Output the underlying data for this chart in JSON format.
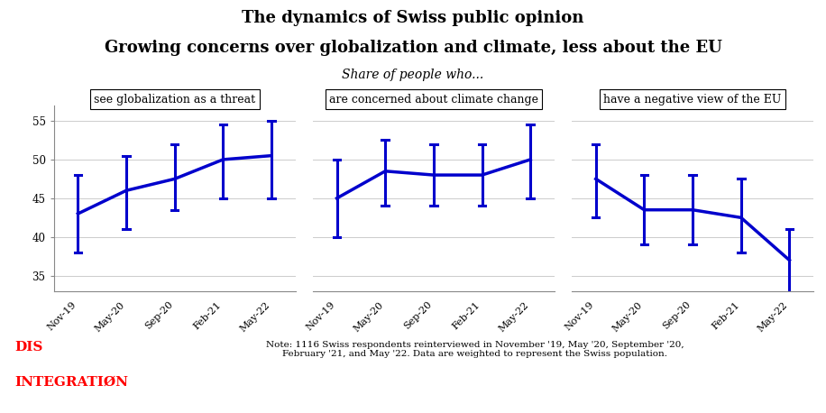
{
  "title_line1": "The dynamics of Swiss public opinion",
  "title_line2": "Growing concerns over globalization and climate, less about the EU",
  "subtitle": "Share of people who...",
  "line_color": "#0000CC",
  "background_color": "#ffffff",
  "grid_color": "#cccccc",
  "panels": [
    {
      "label": "see globalization as a threat",
      "x_labels": [
        "Nov-19",
        "May-20",
        "Sep-20",
        "Feb-21",
        "May-22"
      ],
      "y": [
        43,
        46,
        47.5,
        50,
        50.5
      ],
      "y_low": [
        38,
        41,
        43.5,
        45,
        45
      ],
      "y_high": [
        48,
        50.5,
        52,
        54.5,
        55
      ]
    },
    {
      "label": "are concerned about climate change",
      "x_labels": [
        "Nov-19",
        "May-20",
        "Sep-20",
        "Feb-21",
        "May-22"
      ],
      "y": [
        45,
        48.5,
        48,
        48,
        50
      ],
      "y_low": [
        40,
        44,
        44,
        44,
        45
      ],
      "y_high": [
        50,
        52.5,
        52,
        52,
        54.5
      ]
    },
    {
      "label": "have a negative view of the EU",
      "x_labels": [
        "Nov-19",
        "May-20",
        "Sep-20",
        "Feb-21",
        "May-22"
      ],
      "y": [
        47.5,
        43.5,
        43.5,
        42.5,
        37
      ],
      "y_low": [
        42.5,
        39,
        39,
        38,
        32.5
      ],
      "y_high": [
        52,
        48,
        48,
        47.5,
        41
      ]
    }
  ],
  "ylim": [
    33,
    57
  ],
  "yticks": [
    35,
    40,
    45,
    50,
    55
  ],
  "note_text": "Note: 1116 Swiss respondents reinterviewed in November '19, May '20, September '20,\nFebruary '21, and May '22. Data are weighted to represent the Swiss population.",
  "logo_dis": "DIS",
  "logo_integration": "INTEGRATIØN",
  "title_fontsize": 13,
  "subtitle_fontsize": 10,
  "panel_label_fontsize": 9,
  "tick_fontsize": 8.5,
  "note_fontsize": 7.5
}
